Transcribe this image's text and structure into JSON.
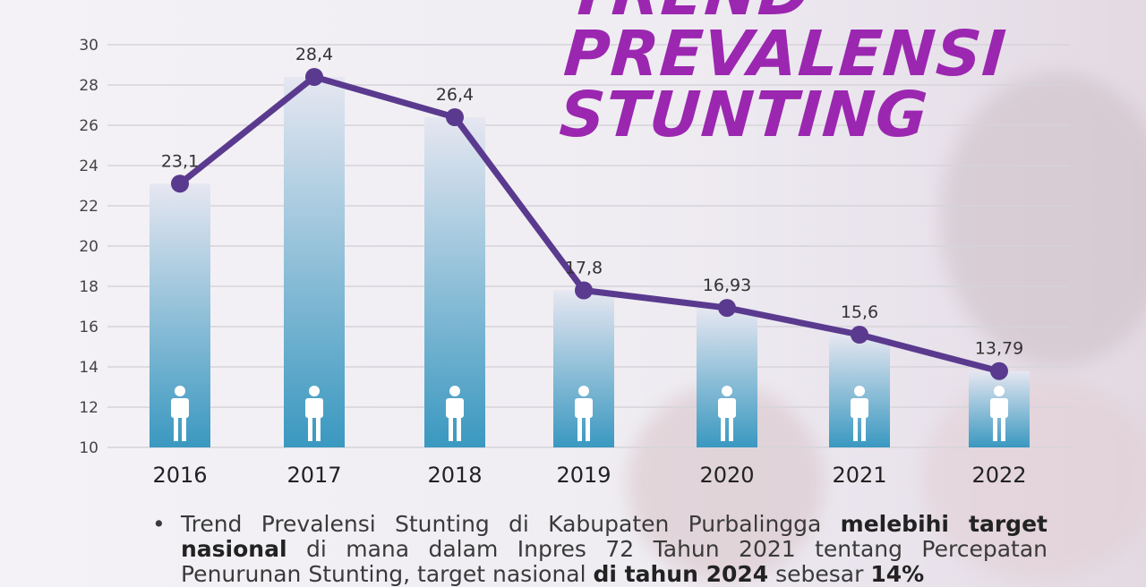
{
  "title_lines": [
    "TREND",
    "PREVALENSI",
    "STUNTING"
  ],
  "colors": {
    "title": "#9b27b0",
    "line": "#5a3a8e",
    "bar_top": "#e4e6f0",
    "bar_bottom": "#3e9bc2",
    "icon": "#ffffff"
  },
  "chart_data": {
    "type": "bar+line",
    "categories": [
      "2016",
      "2017",
      "2018",
      "2019",
      "2020",
      "2021",
      "2022"
    ],
    "values": [
      23.1,
      28.4,
      26.4,
      17.8,
      16.93,
      15.6,
      13.79
    ],
    "data_labels": [
      "23,1",
      "28,4",
      "26,4",
      "17,8",
      "16,93",
      "15,6",
      "13,79"
    ],
    "y_ticks": [
      "10",
      "12",
      "14",
      "16",
      "18",
      "20",
      "22",
      "24",
      "26",
      "28",
      "30"
    ],
    "ylim": [
      10,
      30
    ],
    "grid": true,
    "bar_icon": "person-icon"
  },
  "note": {
    "bullet": "•",
    "parts": [
      {
        "text": "Trend Prevalensi Stunting di Kabupaten Purbalingga ",
        "bold": false
      },
      {
        "text": "melebihi target nasional",
        "bold": true
      },
      {
        "text": " di mana dalam Inpres 72 Tahun 2021 tentang Percepatan Penurunan Stunting, target nasional ",
        "bold": false
      },
      {
        "text": "di tahun 2024",
        "bold": true
      },
      {
        "text": " sebesar ",
        "bold": false
      },
      {
        "text": "14%",
        "bold": true
      }
    ]
  }
}
